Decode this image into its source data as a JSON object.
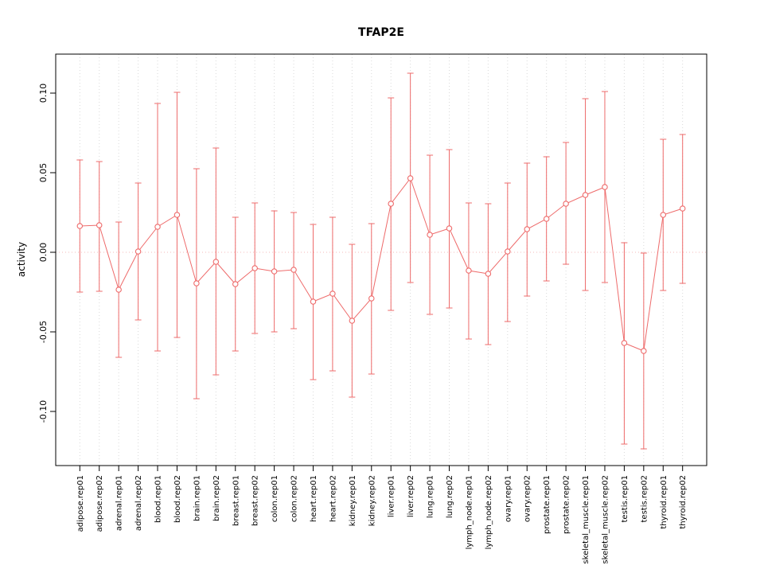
{
  "chart_data": {
    "type": "scatter",
    "title": "TFAP2E",
    "xlabel": "",
    "ylabel": "activity",
    "ylim": [
      -0.134,
      0.1245
    ],
    "yticks": [
      {
        "value": -0.1,
        "label": "-0.10"
      },
      {
        "value": -0.05,
        "label": "-0.05"
      },
      {
        "value": 0.0,
        "label": "0.00"
      },
      {
        "value": 0.05,
        "label": "0.05"
      },
      {
        "value": 0.1,
        "label": "0.10"
      }
    ],
    "grid": "vertical dotted gridline at each category; dotted horizontal reference line at y=0",
    "legend_position": "none",
    "marker": "open-circle",
    "error_bars": true,
    "colors": {
      "series": "#ee6b6b",
      "grid": "#d9d9d9",
      "zero_line": "#f3b8b8",
      "axis": "#000000"
    },
    "categories": [
      "adipose.rep01",
      "adipose.rep02",
      "adrenal.rep01",
      "adrenal.rep02",
      "blood.rep01",
      "blood.rep02",
      "brain.rep01",
      "brain.rep02",
      "breast.rep01",
      "breast.rep02",
      "colon.rep01",
      "colon.rep02",
      "heart.rep01",
      "heart.rep02",
      "kidney.rep01",
      "kidney.rep02",
      "liver.rep01",
      "liver.rep02",
      "lung.rep01",
      "lung.rep02",
      "lymph_node.rep01",
      "lymph_node.rep02",
      "ovary.rep01",
      "ovary.rep02",
      "prostate.rep01",
      "prostate.rep02",
      "skeletal_muscle.rep01",
      "skeletal_muscle.rep02",
      "testis.rep01",
      "testis.rep02",
      "thyroid.rep01",
      "thyroid.rep02"
    ],
    "series": [
      {
        "name": "activity",
        "values": [
          0.0165,
          0.017,
          -0.0235,
          0.0005,
          0.016,
          0.0235,
          -0.0195,
          -0.006,
          -0.02,
          -0.01,
          -0.012,
          -0.011,
          -0.031,
          -0.026,
          -0.043,
          -0.029,
          0.0305,
          0.0465,
          0.011,
          0.015,
          -0.0115,
          -0.0135,
          0.0005,
          0.0145,
          0.021,
          0.0305,
          0.036,
          0.041,
          -0.057,
          -0.062,
          0.0235,
          0.0275
        ],
        "upper": [
          0.058,
          0.057,
          0.019,
          0.0435,
          0.0935,
          0.1005,
          0.0525,
          0.0655,
          0.022,
          0.031,
          0.026,
          0.025,
          0.0175,
          0.022,
          0.005,
          0.018,
          0.097,
          0.1125,
          0.061,
          0.0645,
          0.031,
          0.0305,
          0.0435,
          0.056,
          0.06,
          0.069,
          0.0965,
          0.101,
          0.006,
          -0.0005,
          0.071,
          0.074
        ],
        "lower": [
          -0.025,
          -0.0245,
          -0.066,
          -0.0425,
          -0.062,
          -0.0535,
          -0.092,
          -0.077,
          -0.062,
          -0.051,
          -0.05,
          -0.048,
          -0.08,
          -0.0745,
          -0.091,
          -0.0765,
          -0.0365,
          -0.019,
          -0.039,
          -0.035,
          -0.0545,
          -0.058,
          -0.0435,
          -0.0275,
          -0.018,
          -0.0075,
          -0.024,
          -0.019,
          -0.1205,
          -0.1235,
          -0.024,
          -0.0195
        ]
      }
    ]
  }
}
